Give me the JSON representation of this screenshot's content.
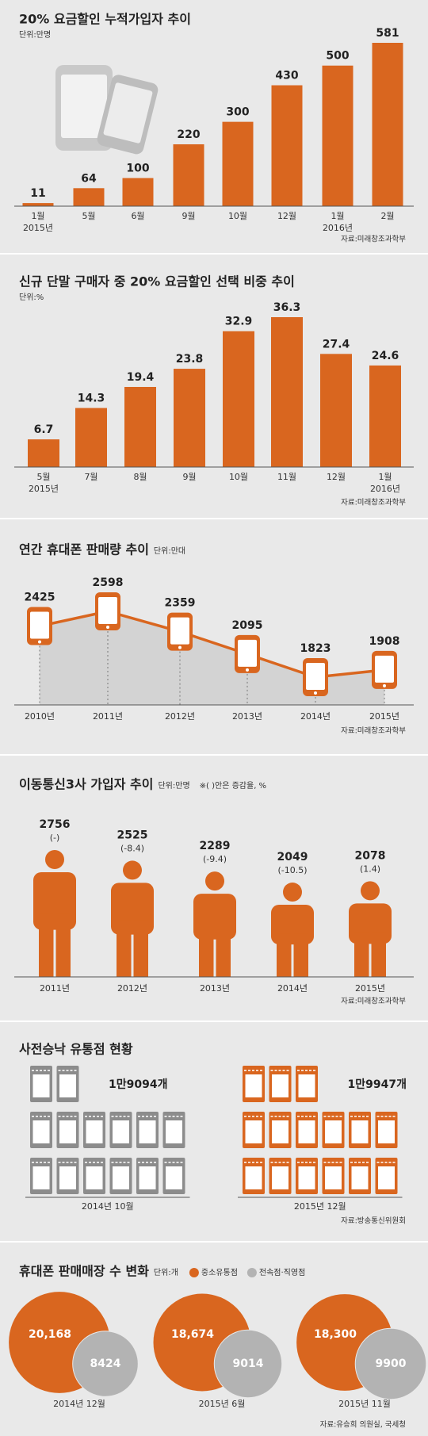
{
  "chart_data": [
    {
      "type": "bar",
      "title": "20% 요금할인 누적가입자 추이",
      "unit": "단위:만명",
      "categories": [
        "1월",
        "5월",
        "6월",
        "9월",
        "10월",
        "12월",
        "1월",
        "2월"
      ],
      "year_labels": [
        "2015년",
        null,
        null,
        null,
        null,
        null,
        "2016년",
        null
      ],
      "values": [
        11,
        64,
        100,
        220,
        300,
        430,
        500,
        581
      ],
      "color": "#d9661f",
      "source": "자료:미래창조과학부"
    },
    {
      "type": "bar",
      "title": "신규 단말 구매자 중 20% 요금할인 선택 비중 추이",
      "unit": "단위:%",
      "categories": [
        "5월",
        "7월",
        "8월",
        "9월",
        "10월",
        "11월",
        "12월",
        "1월"
      ],
      "year_labels": [
        "2015년",
        null,
        null,
        null,
        null,
        null,
        null,
        "2016년"
      ],
      "values": [
        6.7,
        14.3,
        19.4,
        23.8,
        32.9,
        36.3,
        27.4,
        24.6
      ],
      "color": "#d9661f",
      "source": "자료:미래창조과학부"
    },
    {
      "type": "area",
      "title": "연간 휴대폰 판매량 추이",
      "unit": "단위:만대",
      "categories": [
        "2010년",
        "2011년",
        "2012년",
        "2013년",
        "2014년",
        "2015년"
      ],
      "values": [
        2425,
        2598,
        2359,
        2095,
        1823,
        1908
      ],
      "color": "#d9661f",
      "fill": "#d3d3d3",
      "source": "자료:미래창조과학부"
    },
    {
      "type": "pictogram",
      "title": "이동통신3사 가입자 추이",
      "unit": "단위:만명",
      "note": "※( )안은 증감율, %",
      "categories": [
        "2011년",
        "2012년",
        "2013년",
        "2014년",
        "2015년"
      ],
      "values": [
        2756,
        2525,
        2289,
        2049,
        2078
      ],
      "change_labels": [
        "(-)",
        "(-8.4)",
        "(-9.4)",
        "(-10.5)",
        "(1.4)"
      ],
      "color": "#d9661f",
      "source": "자료:미래창조과학부"
    },
    {
      "type": "pictogram-count",
      "title": "사전승낙 유통점 현황",
      "categories": [
        "2014년 10월",
        "2015년 12월"
      ],
      "values": [
        19094,
        19947
      ],
      "value_labels": [
        "1만9094개",
        "1만9947개"
      ],
      "colors": [
        "#8c8c8c",
        "#d9661f"
      ],
      "source": "자료:방송통신위원회"
    },
    {
      "type": "bubble",
      "title": "휴대폰 판매매장 수 변화",
      "unit": "단위:개",
      "categories": [
        "2014년 12월",
        "2015년 6월",
        "2015년 11월"
      ],
      "series": [
        {
          "name": "중소유통점",
          "color": "#d9661f",
          "values": [
            20168,
            18674,
            18300
          ],
          "value_labels": [
            "20,168",
            "18,674",
            "18,300"
          ]
        },
        {
          "name": "전속점·직영점",
          "color": "#b3b3b3",
          "values": [
            8424,
            9014,
            9900
          ]
        }
      ],
      "source": "자료:유승희 의원실, 국세청"
    }
  ]
}
